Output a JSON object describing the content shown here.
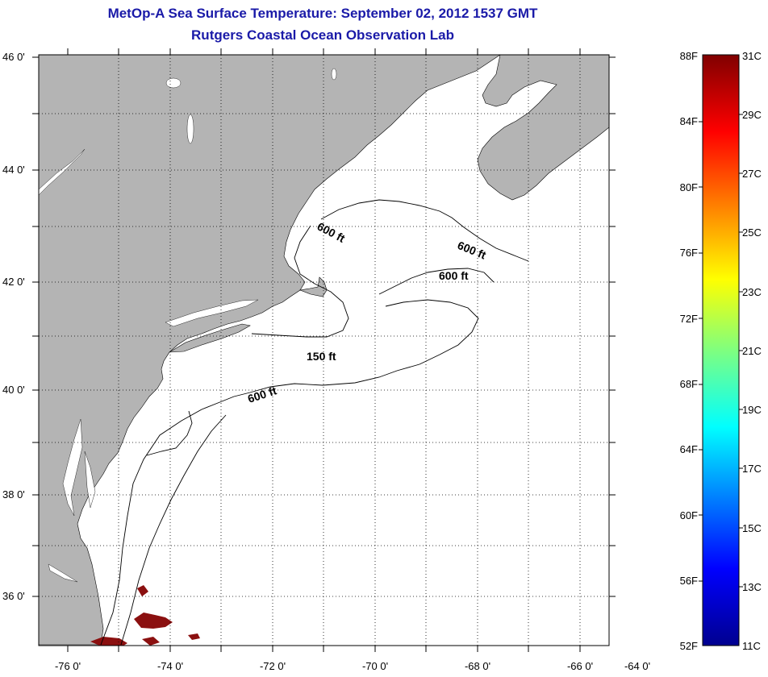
{
  "title": {
    "line1": "MetOp-A Sea Surface Temperature:  September 02, 2012 1537 GMT",
    "line2": "Rutgers Coastal Ocean Observation Lab"
  },
  "axes": {
    "lat_labels": [
      "46 0'",
      "44 0'",
      "42 0'",
      "40 0'",
      "38 0'",
      "36 0'"
    ],
    "lon_labels": [
      "-76 0'",
      "-74 0'",
      "-72 0'",
      "-70 0'",
      "-68 0'",
      "-66 0'",
      "-64 0'"
    ]
  },
  "contours": [
    {
      "label": "600 ft"
    },
    {
      "label": "600 ft"
    },
    {
      "label": "600 ft"
    },
    {
      "label": "150 ft"
    },
    {
      "label": "600 ft"
    }
  ],
  "colorbar": {
    "fahrenheit_labels": [
      "88F",
      "84F",
      "80F",
      "76F",
      "72F",
      "68F",
      "64F",
      "60F",
      "56F",
      "52F"
    ],
    "celsius_labels": [
      "31C",
      "29C",
      "27C",
      "25C",
      "23C",
      "21C",
      "19C",
      "17C",
      "15C",
      "13C",
      "11C"
    ]
  },
  "colors": {
    "land": "#b4b4b4",
    "water": "#ffffff",
    "title": "#1a1aa8",
    "sst_patch": "#8b1010"
  }
}
